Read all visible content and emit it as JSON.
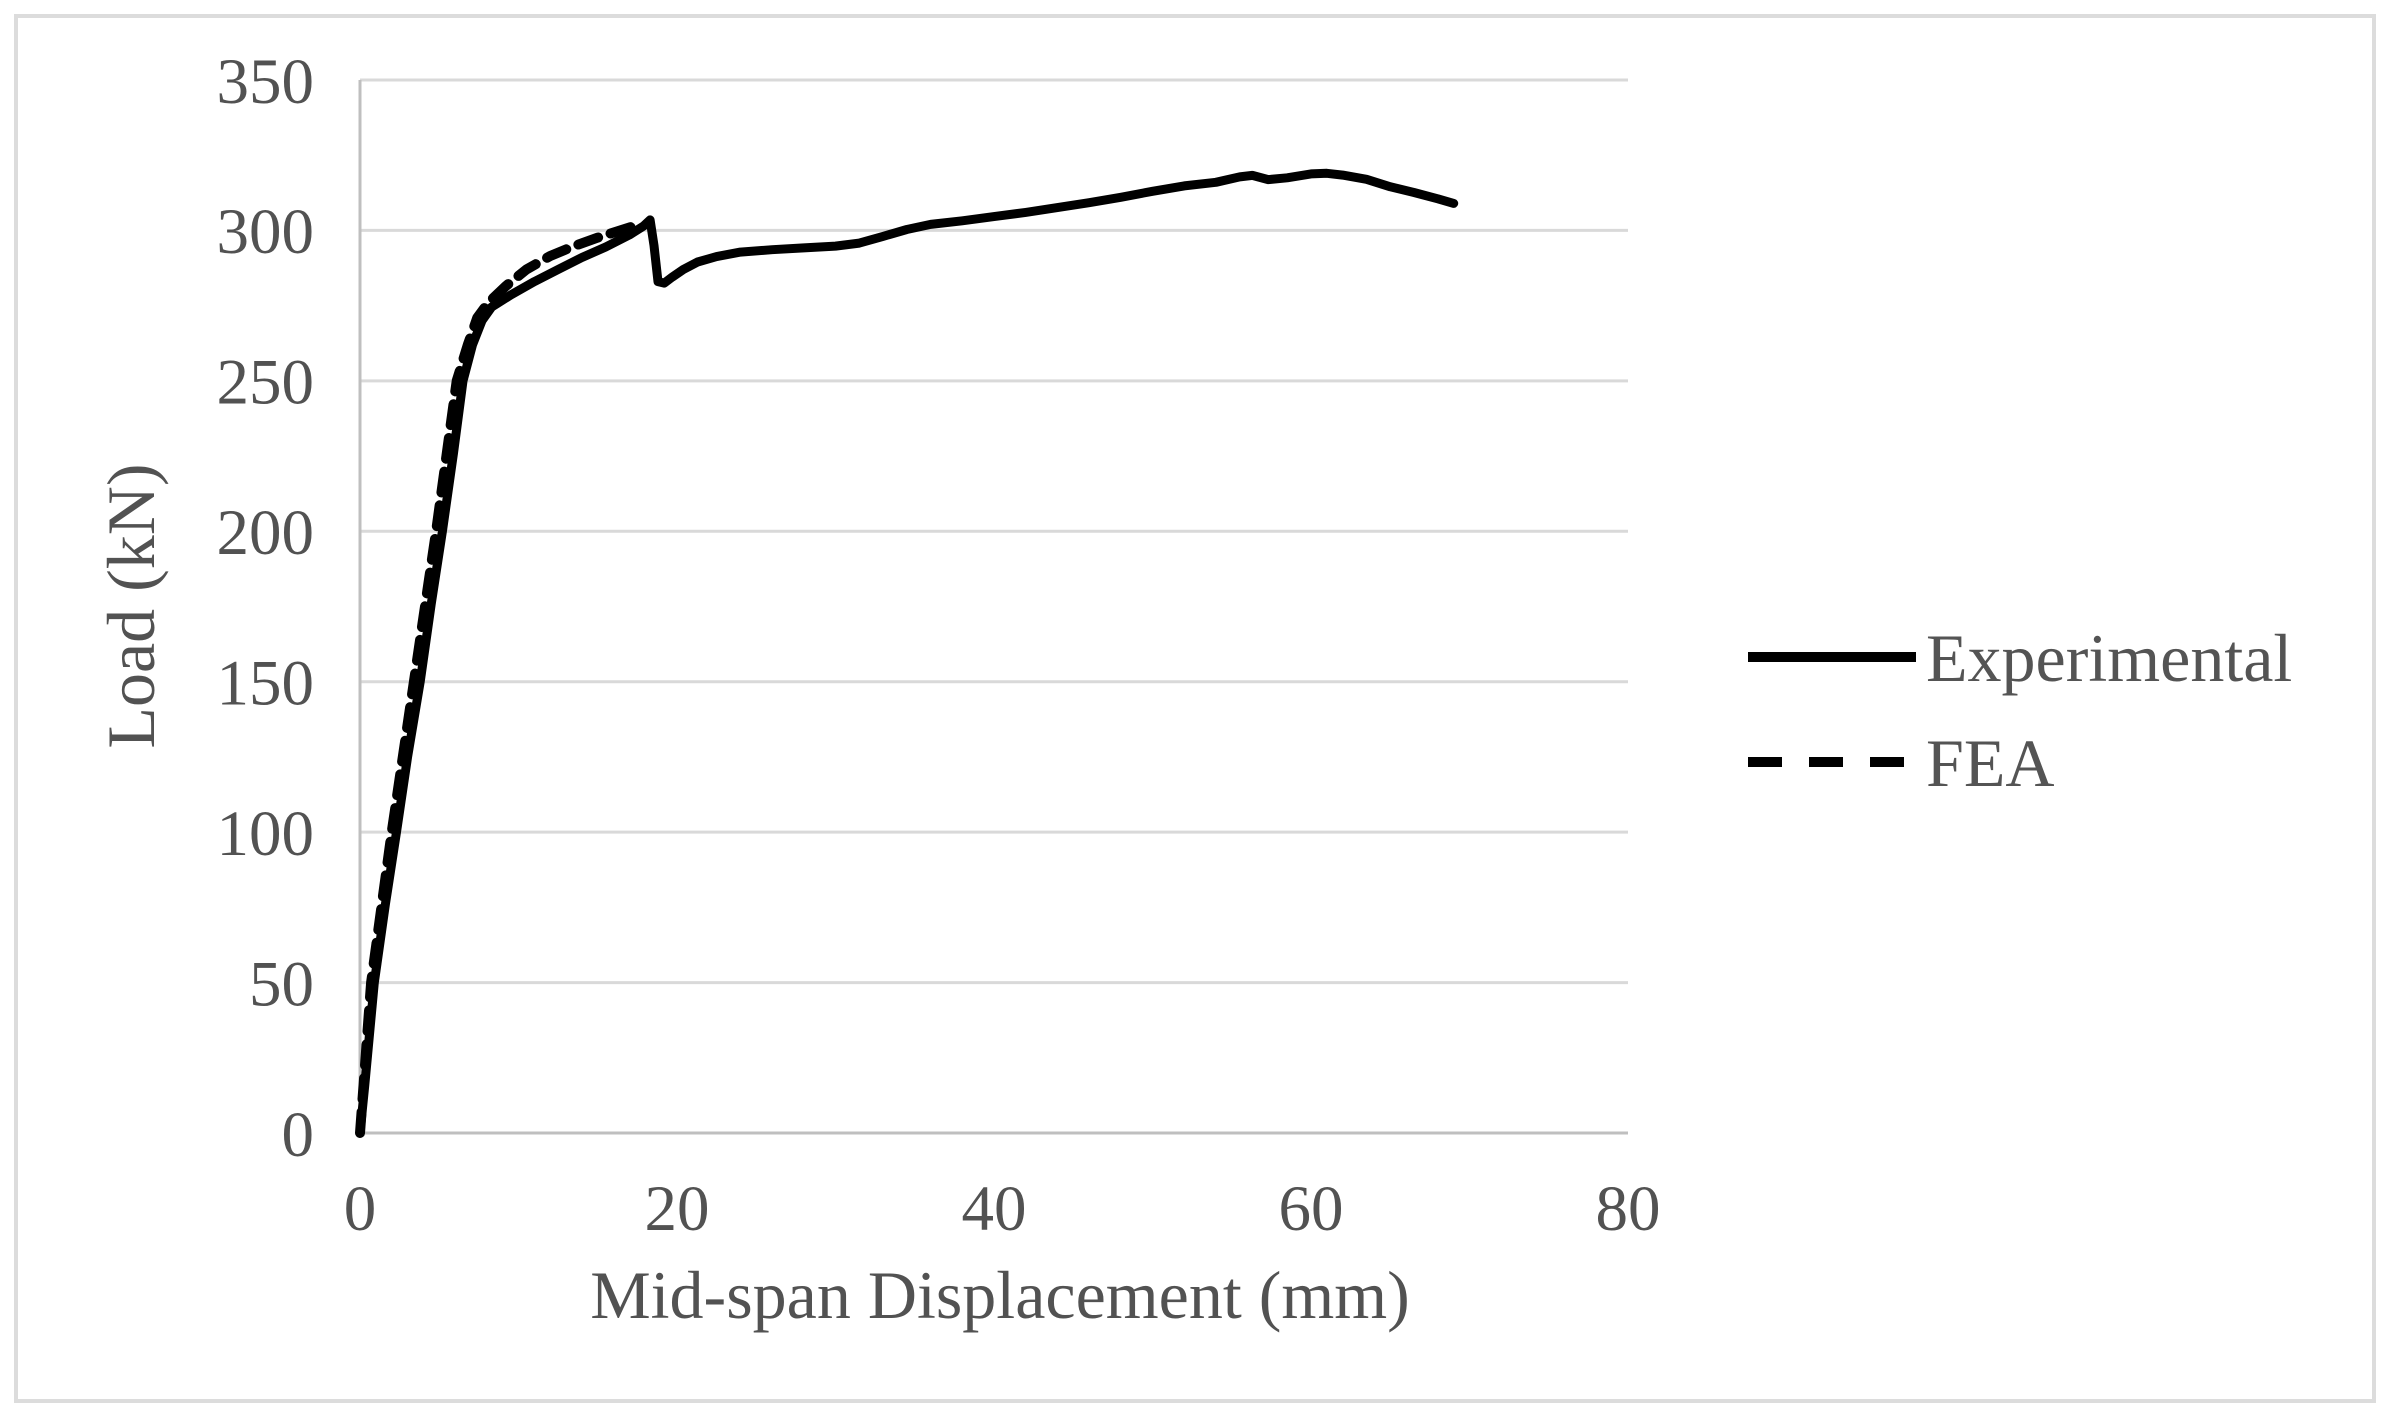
{
  "chart_data": {
    "type": "line",
    "title": "",
    "xlabel": "Mid-span Displacement (mm)",
    "ylabel": "Load (kN)",
    "xlim": [
      0,
      80
    ],
    "ylim": [
      0,
      350
    ],
    "x_ticks": [
      0,
      20,
      40,
      60,
      80
    ],
    "y_ticks": [
      0,
      50,
      100,
      150,
      200,
      250,
      300,
      350
    ],
    "grid": "horizontal",
    "legend_position": "right-middle",
    "series_color": "#000000",
    "text_color": "#525252",
    "gridline_color": "#d9d9d9",
    "axisline_color": "#bfbfbf",
    "series": [
      {
        "name": "Experimental",
        "style": "solid",
        "color": "#000000",
        "points": [
          [
            0,
            0
          ],
          [
            0.3,
            16
          ],
          [
            0.9,
            50
          ],
          [
            1.6,
            76
          ],
          [
            2.3,
            100
          ],
          [
            3,
            125
          ],
          [
            3.8,
            150
          ],
          [
            4.5,
            176
          ],
          [
            5.2,
            200
          ],
          [
            5.9,
            226
          ],
          [
            6.5,
            250
          ],
          [
            7.1,
            262
          ],
          [
            7.7,
            270
          ],
          [
            8.3,
            274.5
          ],
          [
            9.5,
            278.5
          ],
          [
            11,
            283
          ],
          [
            12.5,
            287
          ],
          [
            14,
            291
          ],
          [
            15.5,
            294.5
          ],
          [
            17,
            298.5
          ],
          [
            17.9,
            301.5
          ],
          [
            18.3,
            303.5
          ],
          [
            18.55,
            295
          ],
          [
            18.8,
            283
          ],
          [
            19.2,
            282.5
          ],
          [
            19.7,
            284.5
          ],
          [
            20.4,
            287
          ],
          [
            21.3,
            289.5
          ],
          [
            22.5,
            291.3
          ],
          [
            24,
            292.8
          ],
          [
            26,
            293.6
          ],
          [
            28,
            294.2
          ],
          [
            30,
            294.8
          ],
          [
            31.5,
            295.8
          ],
          [
            33,
            298
          ],
          [
            34.5,
            300.3
          ],
          [
            36,
            302
          ],
          [
            38,
            303.2
          ],
          [
            40,
            304.6
          ],
          [
            42,
            306
          ],
          [
            44,
            307.6
          ],
          [
            46,
            309.2
          ],
          [
            48,
            311
          ],
          [
            50,
            313
          ],
          [
            52,
            314.8
          ],
          [
            54,
            316
          ],
          [
            55.5,
            317.8
          ],
          [
            56.3,
            318.3
          ],
          [
            57.3,
            316.9
          ],
          [
            58.5,
            317.5
          ],
          [
            60,
            318.8
          ],
          [
            61,
            319
          ],
          [
            62,
            318.4
          ],
          [
            63.5,
            317
          ],
          [
            65,
            314.5
          ],
          [
            66.5,
            312.6
          ],
          [
            68,
            310.5
          ],
          [
            69,
            309
          ]
        ]
      },
      {
        "name": "FEA",
        "style": "dashed",
        "color": "#000000",
        "points": [
          [
            0,
            0
          ],
          [
            0.7,
            50
          ],
          [
            2,
            100
          ],
          [
            3.4,
            150
          ],
          [
            4.8,
            200
          ],
          [
            6.1,
            250
          ],
          [
            6.8,
            262
          ],
          [
            7.4,
            271
          ],
          [
            8.1,
            276
          ],
          [
            9.2,
            281.5
          ],
          [
            10.5,
            287
          ],
          [
            12,
            291.5
          ],
          [
            13.5,
            294.8
          ],
          [
            15,
            297.6
          ],
          [
            16.3,
            299.8
          ],
          [
            17.5,
            301.8
          ]
        ]
      }
    ]
  }
}
